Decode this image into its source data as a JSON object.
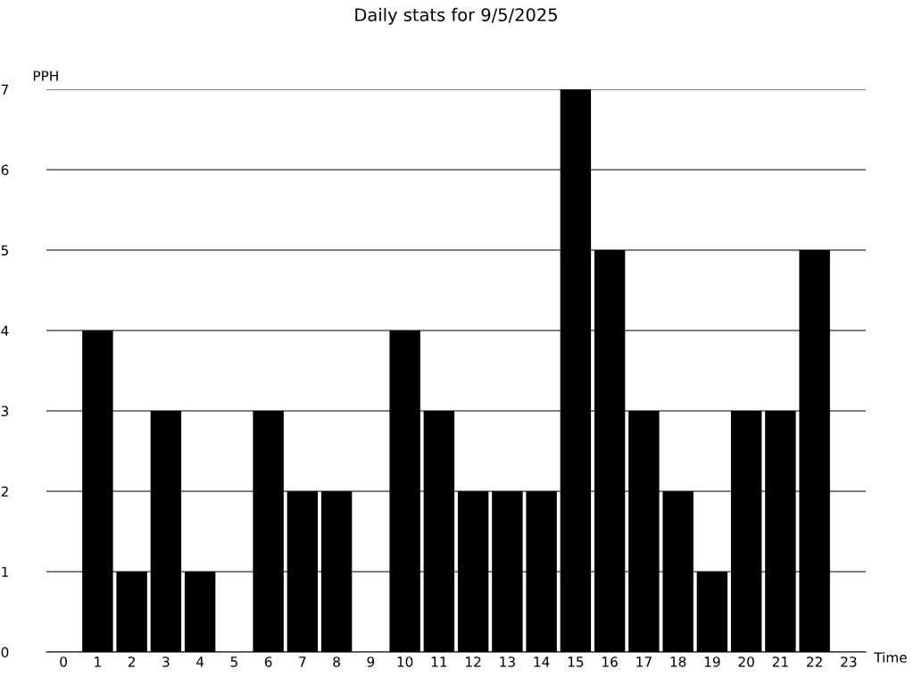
{
  "chart_data": {
    "type": "bar",
    "title": "Daily stats for 9/5/2025",
    "xlabel": "Time",
    "ylabel": "PPH",
    "categories": [
      "0",
      "1",
      "2",
      "3",
      "4",
      "5",
      "6",
      "7",
      "8",
      "9",
      "10",
      "11",
      "12",
      "13",
      "14",
      "15",
      "16",
      "17",
      "18",
      "19",
      "20",
      "21",
      "22",
      "23"
    ],
    "values": [
      0,
      4,
      1,
      3,
      1,
      0,
      3,
      2,
      2,
      0,
      4,
      3,
      2,
      2,
      2,
      7,
      5,
      3,
      2,
      1,
      3,
      3,
      5,
      0
    ],
    "color": "#000000",
    "ylim": [
      0,
      7
    ],
    "yticks": [
      0,
      1,
      2,
      3,
      4,
      5,
      6,
      7
    ],
    "grid": "y",
    "legend": false
  }
}
